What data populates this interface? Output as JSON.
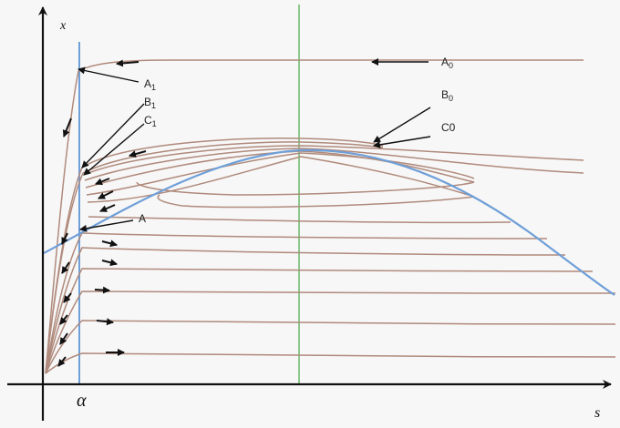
{
  "axes": {
    "x_label": "s",
    "y_label": "x",
    "alpha_label": "α"
  },
  "labels": {
    "A0": {
      "main": "A",
      "sub": "0"
    },
    "B0": {
      "main": "B",
      "sub": "0"
    },
    "C0": {
      "main": "C0",
      "sub": ""
    },
    "A1": {
      "main": "A",
      "sub": "1"
    },
    "B1": {
      "main": "B",
      "sub": "1"
    },
    "C1": {
      "main": "C",
      "sub": "1"
    },
    "A": {
      "main": "A",
      "sub": ""
    }
  },
  "colors": {
    "background": "#f7f7f7",
    "axis": "#111111",
    "trajectory": "#b08a7c",
    "nullcline": "#6f9fd8",
    "vertical_line": "#8cc88c",
    "alpha_line": "#6f9fd8",
    "arrow": "#111111"
  }
}
